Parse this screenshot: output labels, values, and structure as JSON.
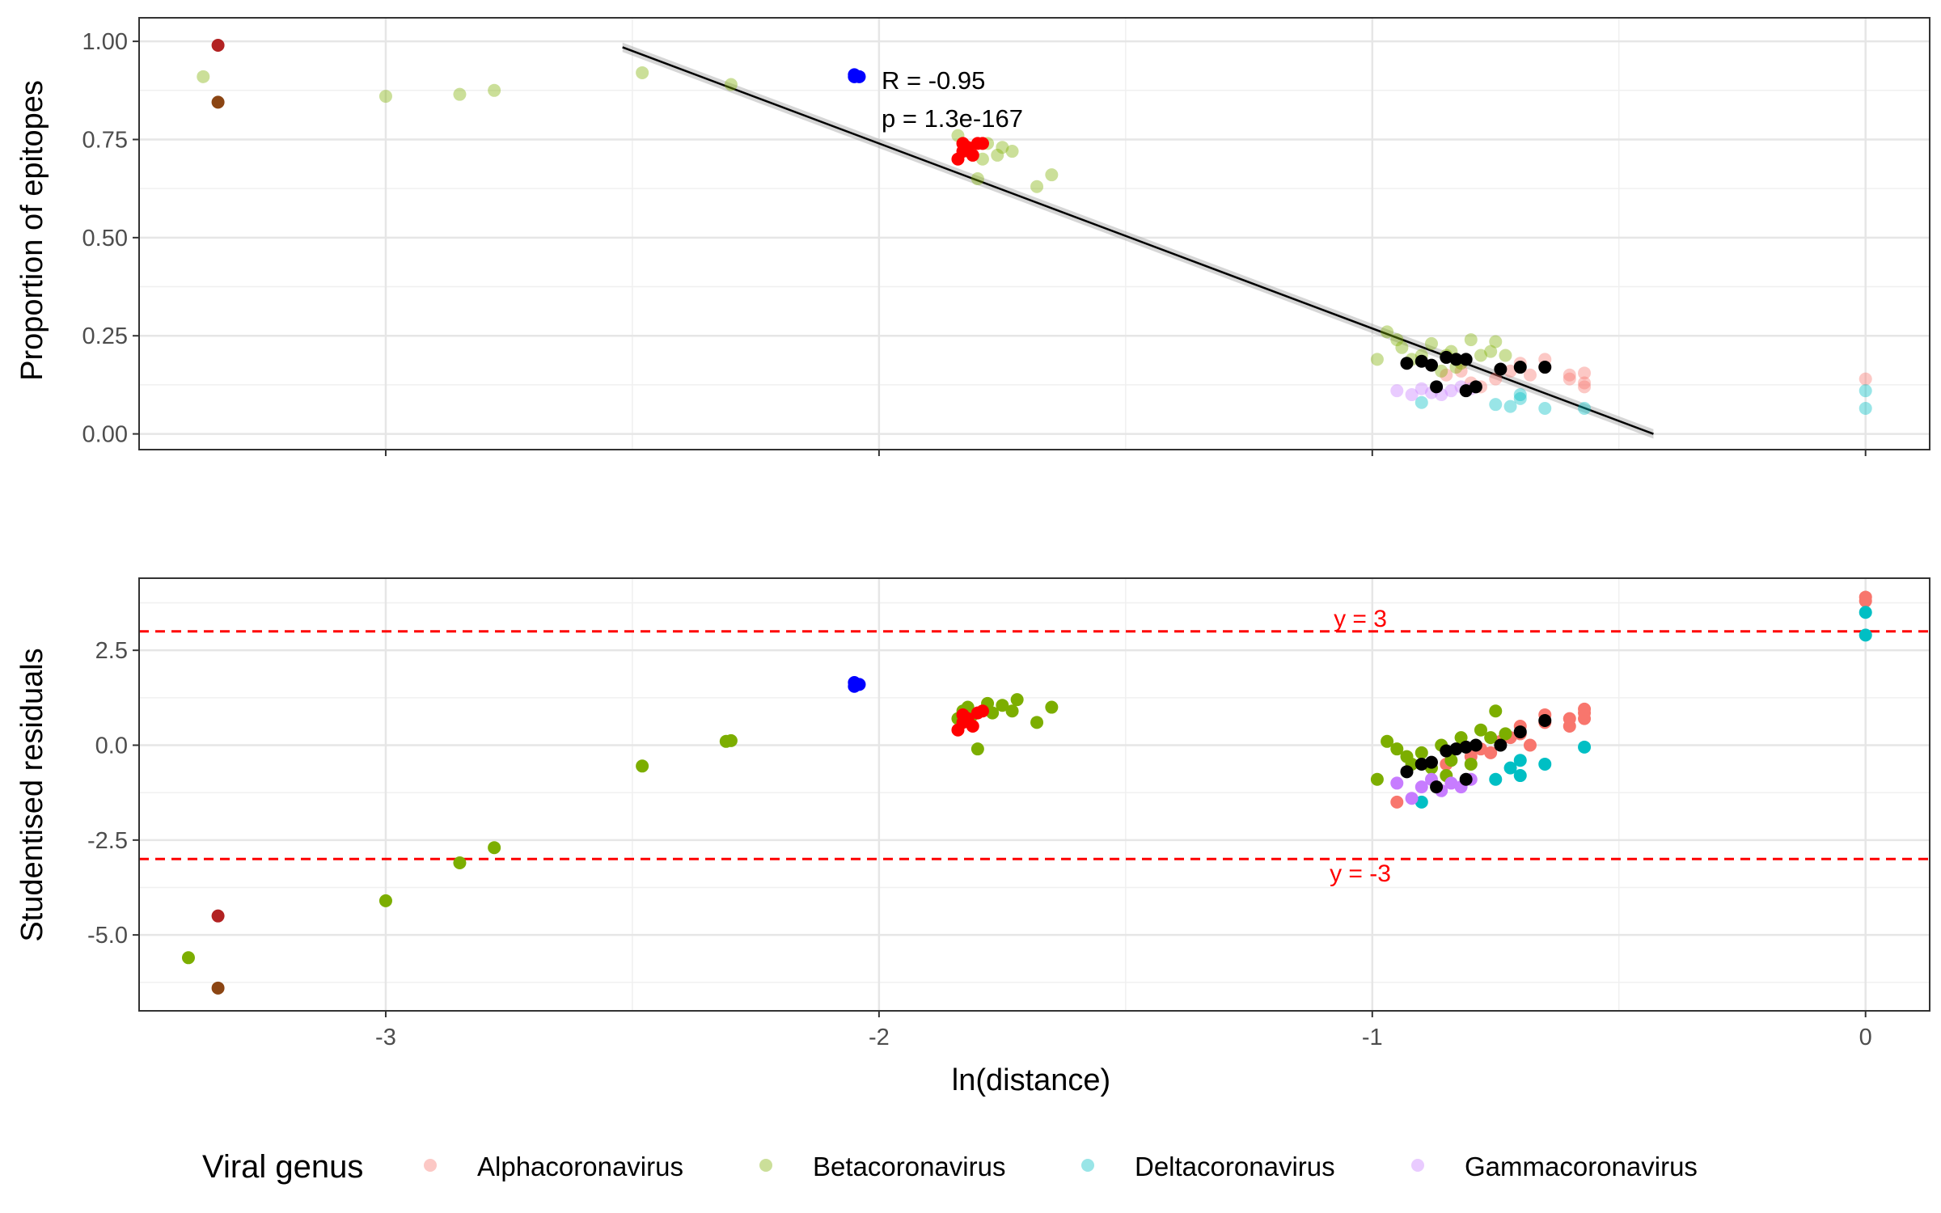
{
  "chart_data": [
    {
      "type": "scatter",
      "panel": "top",
      "xlabel": "",
      "ylabel": "Proportion of epitopes",
      "xlim": [
        -3.5,
        0.13
      ],
      "ylim": [
        -0.04,
        1.06
      ],
      "x_ticks": [
        -3,
        -2,
        -1,
        0
      ],
      "y_ticks": [
        0.0,
        0.25,
        0.5,
        0.75,
        1.0
      ],
      "y_tick_labels": [
        "0.00",
        "0.25",
        "0.50",
        "0.75",
        "1.00"
      ],
      "grid": true,
      "annotations": [
        "R = -0.95",
        "p = 1.3e-167"
      ],
      "fit_line": {
        "x": [
          -2.52,
          -0.43
        ],
        "y": [
          0.985,
          0.0
        ]
      },
      "series": [
        {
          "group": "Alphacoronavirus",
          "color": "#F8766D",
          "alpha": 0.4,
          "points": [
            [
              -0.85,
              0.15
            ],
            [
              -0.82,
              0.16
            ],
            [
              -0.8,
              0.13
            ],
            [
              -0.78,
              0.12
            ],
            [
              -0.75,
              0.14
            ],
            [
              -0.72,
              0.16
            ],
            [
              -0.7,
              0.18
            ],
            [
              -0.68,
              0.15
            ],
            [
              -0.65,
              0.17
            ],
            [
              -0.65,
              0.19
            ],
            [
              -0.6,
              0.14
            ],
            [
              -0.6,
              0.15
            ],
            [
              -0.57,
              0.12
            ],
            [
              -0.57,
              0.13
            ],
            [
              -0.57,
              0.155
            ],
            [
              0.0,
              0.14
            ]
          ]
        },
        {
          "group": "Betacoronavirus",
          "color": "#7CAE00",
          "alpha": 0.4,
          "points": [
            [
              -3.37,
              0.91
            ],
            [
              -3.0,
              0.86
            ],
            [
              -2.85,
              0.865
            ],
            [
              -2.78,
              0.875
            ],
            [
              -2.48,
              0.92
            ],
            [
              -2.3,
              0.89
            ],
            [
              -1.84,
              0.76
            ],
            [
              -1.83,
              0.74
            ],
            [
              -1.82,
              0.72
            ],
            [
              -1.8,
              0.65
            ],
            [
              -1.79,
              0.7
            ],
            [
              -1.78,
              0.74
            ],
            [
              -1.76,
              0.71
            ],
            [
              -1.75,
              0.73
            ],
            [
              -1.73,
              0.72
            ],
            [
              -1.68,
              0.63
            ],
            [
              -1.65,
              0.66
            ],
            [
              -0.99,
              0.19
            ],
            [
              -0.97,
              0.26
            ],
            [
              -0.95,
              0.24
            ],
            [
              -0.94,
              0.22
            ],
            [
              -0.92,
              0.19
            ],
            [
              -0.9,
              0.2
            ],
            [
              -0.88,
              0.23
            ],
            [
              -0.86,
              0.16
            ],
            [
              -0.85,
              0.2
            ],
            [
              -0.84,
              0.21
            ],
            [
              -0.83,
              0.17
            ],
            [
              -0.82,
              0.18
            ],
            [
              -0.8,
              0.24
            ],
            [
              -0.78,
              0.2
            ],
            [
              -0.76,
              0.21
            ],
            [
              -0.75,
              0.235
            ],
            [
              -0.73,
              0.2
            ]
          ]
        },
        {
          "group": "Deltacoronavirus",
          "color": "#00BFC4",
          "alpha": 0.4,
          "points": [
            [
              -0.9,
              0.08
            ],
            [
              -0.75,
              0.075
            ],
            [
              -0.72,
              0.07
            ],
            [
              -0.7,
              0.09
            ],
            [
              -0.7,
              0.1
            ],
            [
              -0.65,
              0.065
            ],
            [
              -0.57,
              0.065
            ],
            [
              0.0,
              0.065
            ],
            [
              0.0,
              0.11
            ]
          ]
        },
        {
          "group": "Gammacoronavirus",
          "color": "#C77CFF",
          "alpha": 0.4,
          "points": [
            [
              -0.95,
              0.11
            ],
            [
              -0.92,
              0.1
            ],
            [
              -0.9,
              0.115
            ],
            [
              -0.88,
              0.105
            ],
            [
              -0.86,
              0.1
            ],
            [
              -0.84,
              0.11
            ],
            [
              -0.82,
              0.12
            ],
            [
              -0.8,
              0.115
            ]
          ]
        },
        {
          "group": "",
          "color": "#000000",
          "alpha": 1.0,
          "points": [
            [
              -0.93,
              0.18
            ],
            [
              -0.9,
              0.185
            ],
            [
              -0.88,
              0.175
            ],
            [
              -0.87,
              0.12
            ],
            [
              -0.85,
              0.195
            ],
            [
              -0.83,
              0.19
            ],
            [
              -0.81,
              0.19
            ],
            [
              -0.81,
              0.11
            ],
            [
              -0.79,
              0.12
            ],
            [
              -0.74,
              0.165
            ],
            [
              -0.7,
              0.17
            ],
            [
              -0.65,
              0.17
            ]
          ]
        },
        {
          "group": "",
          "color": "#0000FF",
          "alpha": 1.0,
          "points": [
            [
              -2.05,
              0.91
            ],
            [
              -2.05,
              0.915
            ],
            [
              -2.04,
              0.91
            ]
          ]
        },
        {
          "group": "",
          "color": "#FF0000",
          "alpha": 1.0,
          "points": [
            [
              -1.84,
              0.7
            ],
            [
              -1.83,
              0.72
            ],
            [
              -1.83,
              0.74
            ],
            [
              -1.82,
              0.73
            ],
            [
              -1.81,
              0.71
            ],
            [
              -1.8,
              0.74
            ],
            [
              -1.79,
              0.74
            ]
          ]
        },
        {
          "group": "",
          "color": "#B22222",
          "alpha": 1.0,
          "points": [
            [
              -3.34,
              0.99
            ]
          ]
        },
        {
          "group": "",
          "color": "#8B4513",
          "alpha": 1.0,
          "points": [
            [
              -3.34,
              0.845
            ]
          ]
        }
      ]
    },
    {
      "type": "scatter",
      "panel": "bottom",
      "xlabel": "ln(distance)",
      "ylabel": "Studentised residuals",
      "xlim": [
        -3.5,
        0.13
      ],
      "ylim": [
        -7.0,
        4.4
      ],
      "x_ticks": [
        -3,
        -2,
        -1,
        0
      ],
      "x_tick_labels": [
        "-3",
        "-2",
        "-1",
        "0"
      ],
      "y_ticks": [
        -5.0,
        -2.5,
        0.0,
        2.5
      ],
      "y_tick_labels": [
        "-5.0",
        "-2.5",
        "0.0",
        "2.5"
      ],
      "grid": true,
      "reference_lines": [
        {
          "y": 3,
          "label": "y = 3",
          "color": "#FF0000"
        },
        {
          "y": -3,
          "label": "y = -3",
          "color": "#FF0000"
        }
      ],
      "series": [
        {
          "group": "Alphacoronavirus",
          "color": "#F8766D",
          "alpha": 1.0,
          "points": [
            [
              -0.95,
              -1.5
            ],
            [
              -0.85,
              -0.5
            ],
            [
              -0.8,
              -0.3
            ],
            [
              -0.78,
              -0.1
            ],
            [
              -0.76,
              -0.2
            ],
            [
              -0.74,
              0.1
            ],
            [
              -0.72,
              0.2
            ],
            [
              -0.7,
              0.5
            ],
            [
              -0.7,
              0.3
            ],
            [
              -0.68,
              0.0
            ],
            [
              -0.65,
              0.8
            ],
            [
              -0.65,
              0.6
            ],
            [
              -0.6,
              0.5
            ],
            [
              -0.6,
              0.7
            ],
            [
              -0.57,
              0.7
            ],
            [
              -0.57,
              0.85
            ],
            [
              -0.57,
              0.95
            ],
            [
              0.0,
              3.8
            ],
            [
              0.0,
              3.9
            ]
          ]
        },
        {
          "group": "Betacoronavirus",
          "color": "#7CAE00",
          "alpha": 1.0,
          "points": [
            [
              -3.4,
              -5.6
            ],
            [
              -3.0,
              -4.1
            ],
            [
              -2.85,
              -3.1
            ],
            [
              -2.78,
              -2.7
            ],
            [
              -2.48,
              -0.55
            ],
            [
              -2.31,
              0.1
            ],
            [
              -2.3,
              0.12
            ],
            [
              -1.84,
              0.7
            ],
            [
              -1.83,
              0.9
            ],
            [
              -1.82,
              1.0
            ],
            [
              -1.81,
              0.8
            ],
            [
              -1.8,
              -0.1
            ],
            [
              -1.78,
              1.1
            ],
            [
              -1.77,
              0.85
            ],
            [
              -1.75,
              1.05
            ],
            [
              -1.73,
              0.9
            ],
            [
              -1.72,
              1.2
            ],
            [
              -1.68,
              0.6
            ],
            [
              -1.65,
              1.0
            ],
            [
              -0.99,
              -0.9
            ],
            [
              -0.97,
              0.1
            ],
            [
              -0.95,
              -0.1
            ],
            [
              -0.93,
              -0.3
            ],
            [
              -0.92,
              -0.5
            ],
            [
              -0.9,
              -0.2
            ],
            [
              -0.88,
              -0.6
            ],
            [
              -0.86,
              0.0
            ],
            [
              -0.85,
              -0.8
            ],
            [
              -0.84,
              -0.4
            ],
            [
              -0.82,
              0.2
            ],
            [
              -0.8,
              -0.5
            ],
            [
              -0.78,
              0.4
            ],
            [
              -0.76,
              0.2
            ],
            [
              -0.75,
              0.9
            ],
            [
              -0.73,
              0.3
            ]
          ]
        },
        {
          "group": "Deltacoronavirus",
          "color": "#00BFC4",
          "alpha": 1.0,
          "points": [
            [
              -0.9,
              -1.5
            ],
            [
              -0.75,
              -0.9
            ],
            [
              -0.72,
              -0.6
            ],
            [
              -0.7,
              -0.4
            ],
            [
              -0.7,
              -0.8
            ],
            [
              -0.65,
              -0.5
            ],
            [
              -0.57,
              -0.05
            ],
            [
              0.0,
              2.9
            ],
            [
              0.0,
              3.5
            ]
          ]
        },
        {
          "group": "Gammacoronavirus",
          "color": "#C77CFF",
          "alpha": 1.0,
          "points": [
            [
              -0.95,
              -1.0
            ],
            [
              -0.92,
              -1.4
            ],
            [
              -0.9,
              -1.1
            ],
            [
              -0.88,
              -0.9
            ],
            [
              -0.86,
              -1.2
            ],
            [
              -0.84,
              -1.0
            ],
            [
              -0.82,
              -1.1
            ],
            [
              -0.8,
              -0.9
            ]
          ]
        },
        {
          "group": "",
          "color": "#000000",
          "alpha": 1.0,
          "points": [
            [
              -0.93,
              -0.7
            ],
            [
              -0.9,
              -0.5
            ],
            [
              -0.88,
              -0.45
            ],
            [
              -0.87,
              -1.1
            ],
            [
              -0.85,
              -0.15
            ],
            [
              -0.83,
              -0.1
            ],
            [
              -0.81,
              -0.05
            ],
            [
              -0.81,
              -0.9
            ],
            [
              -0.79,
              0.0
            ],
            [
              -0.74,
              0.0
            ],
            [
              -0.7,
              0.35
            ],
            [
              -0.65,
              0.65
            ]
          ]
        },
        {
          "group": "",
          "color": "#0000FF",
          "alpha": 1.0,
          "points": [
            [
              -2.05,
              1.55
            ],
            [
              -2.05,
              1.65
            ],
            [
              -2.04,
              1.6
            ]
          ]
        },
        {
          "group": "",
          "color": "#FF0000",
          "alpha": 1.0,
          "points": [
            [
              -1.84,
              0.4
            ],
            [
              -1.83,
              0.6
            ],
            [
              -1.83,
              0.8
            ],
            [
              -1.82,
              0.7
            ],
            [
              -1.81,
              0.5
            ],
            [
              -1.8,
              0.85
            ],
            [
              -1.79,
              0.9
            ]
          ]
        },
        {
          "group": "",
          "color": "#B22222",
          "alpha": 1.0,
          "points": [
            [
              -3.34,
              -4.5
            ]
          ]
        },
        {
          "group": "",
          "color": "#8B4513",
          "alpha": 1.0,
          "points": [
            [
              -3.34,
              -6.4
            ]
          ]
        }
      ]
    }
  ],
  "legend": {
    "title": "Viral genus",
    "items": [
      {
        "label": "Alphacoronavirus",
        "color": "#F8766D"
      },
      {
        "label": "Betacoronavirus",
        "color": "#7CAE00"
      },
      {
        "label": "Deltacoronavirus",
        "color": "#00BFC4"
      },
      {
        "label": "Gammacoronavirus",
        "color": "#C77CFF"
      }
    ]
  }
}
